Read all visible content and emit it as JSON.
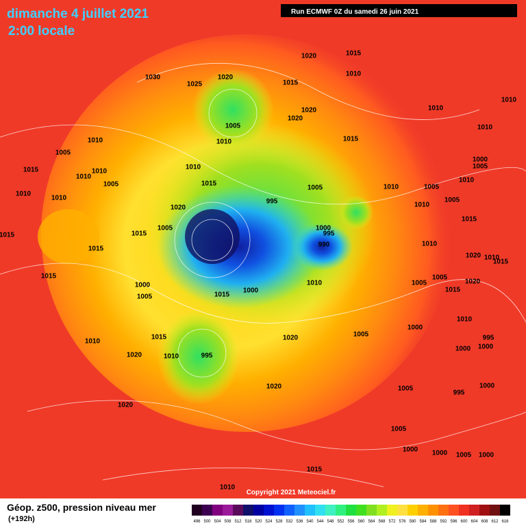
{
  "header": {
    "title": "dimanche 4 juillet 2021",
    "subtitle": "2:00 locale",
    "run": "Run ECMWF 0Z du samedi 26 juin 2021"
  },
  "map": {
    "pressure_labels": [
      "1030",
      "1025",
      "1020",
      "1020",
      "1015",
      "1010",
      "1015",
      "1020",
      "1020",
      "1005",
      "1010",
      "1015",
      "1010",
      "1010",
      "1010",
      "1000",
      "1005",
      "1010",
      "1005",
      "1015",
      "1010",
      "1010",
      "1005",
      "1010",
      "1010",
      "1010",
      "1015",
      "1005",
      "1010",
      "1005",
      "1010",
      "995",
      "1020",
      "1005",
      "1015",
      "1015",
      "1015",
      "1000",
      "995",
      "990",
      "1010",
      "1005",
      "1015",
      "1010",
      "1015",
      "1000",
      "1005",
      "1015",
      "1000",
      "1010",
      "1005",
      "1005",
      "1020",
      "1010",
      "1015",
      "1020",
      "1015",
      "1010",
      "1020",
      "1005",
      "1000",
      "1015",
      "1010",
      "1020",
      "995",
      "1000",
      "1000",
      "1010",
      "995",
      "1020",
      "1005",
      "995",
      "1000",
      "1020",
      "1005",
      "1000",
      "1000",
      "1005",
      "1000",
      "1015",
      "1010"
    ],
    "copyright": "Copyright 2021 Meteociel.fr"
  },
  "legend": {
    "title": "Géop. z500, pression niveau mer",
    "subtitle": "(+192h)",
    "ticks": [
      496,
      500,
      504,
      508,
      512,
      516,
      520,
      524,
      528,
      532,
      536,
      540,
      544,
      548,
      552,
      556,
      560,
      564,
      568,
      572,
      576,
      580,
      584,
      588,
      592,
      596,
      600,
      604,
      608,
      612,
      616
    ]
  }
}
